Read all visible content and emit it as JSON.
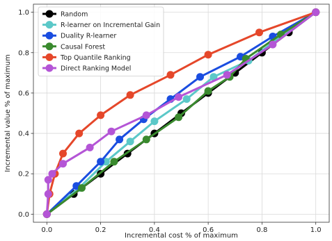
{
  "chart_data": {
    "type": "line",
    "xlabel": "Incremental cost % of maximum",
    "ylabel": "Incremental value % of maximum",
    "xlim": [
      -0.05,
      1.05
    ],
    "ylim": [
      -0.04,
      1.04
    ],
    "xticks": [
      "0.0",
      "0.2",
      "0.4",
      "0.6",
      "0.8",
      "1.0"
    ],
    "yticks": [
      "0.0",
      "0.2",
      "0.4",
      "0.6",
      "0.8",
      "1.0"
    ],
    "grid": true,
    "legend_position": "top-left",
    "series": [
      {
        "name": "Random",
        "color": "#000000",
        "points": [
          [
            0,
            0
          ],
          [
            0.1,
            0.1
          ],
          [
            0.2,
            0.2
          ],
          [
            0.3,
            0.3
          ],
          [
            0.4,
            0.4
          ],
          [
            0.5,
            0.5
          ],
          [
            0.6,
            0.6
          ],
          [
            0.7,
            0.7
          ],
          [
            0.8,
            0.8
          ],
          [
            0.9,
            0.9
          ],
          [
            1.0,
            1.0
          ]
        ]
      },
      {
        "name": "R-learner on Incremental Gain",
        "color": "#5bc8c8",
        "points": [
          [
            0,
            0
          ],
          [
            0.12,
            0.13
          ],
          [
            0.22,
            0.26
          ],
          [
            0.31,
            0.36
          ],
          [
            0.4,
            0.46
          ],
          [
            0.52,
            0.57
          ],
          [
            0.62,
            0.68
          ],
          [
            0.75,
            0.76
          ],
          [
            0.84,
            0.85
          ],
          [
            1.0,
            1.0
          ]
        ]
      },
      {
        "name": "Duality R-learner",
        "color": "#1a4de0",
        "points": [
          [
            0,
            0
          ],
          [
            0.11,
            0.14
          ],
          [
            0.2,
            0.26
          ],
          [
            0.27,
            0.37
          ],
          [
            0.36,
            0.47
          ],
          [
            0.46,
            0.57
          ],
          [
            0.57,
            0.68
          ],
          [
            0.72,
            0.78
          ],
          [
            0.84,
            0.88
          ],
          [
            1.0,
            1.0
          ]
        ]
      },
      {
        "name": "Causal Forest",
        "color": "#3a8a2e",
        "points": [
          [
            0,
            0
          ],
          [
            0.13,
            0.13
          ],
          [
            0.25,
            0.26
          ],
          [
            0.37,
            0.37
          ],
          [
            0.49,
            0.48
          ],
          [
            0.6,
            0.61
          ],
          [
            0.68,
            0.68
          ],
          [
            0.74,
            0.77
          ],
          [
            0.87,
            0.89
          ],
          [
            1.0,
            1.0
          ]
        ]
      },
      {
        "name": "Top Quantile Ranking",
        "color": "#e5472a",
        "points": [
          [
            0,
            0
          ],
          [
            0.01,
            0.1
          ],
          [
            0.03,
            0.2
          ],
          [
            0.06,
            0.3
          ],
          [
            0.12,
            0.4
          ],
          [
            0.2,
            0.49
          ],
          [
            0.31,
            0.59
          ],
          [
            0.46,
            0.69
          ],
          [
            0.6,
            0.79
          ],
          [
            0.79,
            0.9
          ],
          [
            1.0,
            1.0
          ]
        ]
      },
      {
        "name": "Direct Ranking Model",
        "color": "#b455d6",
        "points": [
          [
            0,
            0
          ],
          [
            0.005,
            0.1
          ],
          [
            0.005,
            0.17
          ],
          [
            0.02,
            0.2
          ],
          [
            0.06,
            0.25
          ],
          [
            0.16,
            0.33
          ],
          [
            0.24,
            0.41
          ],
          [
            0.37,
            0.49
          ],
          [
            0.49,
            0.58
          ],
          [
            0.67,
            0.69
          ],
          [
            0.84,
            0.84
          ],
          [
            1.0,
            1.0
          ]
        ]
      }
    ]
  }
}
